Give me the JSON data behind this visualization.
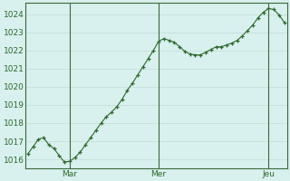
{
  "y_values": [
    1016.3,
    1016.7,
    1017.1,
    1017.2,
    1016.8,
    1016.6,
    1016.2,
    1015.85,
    1015.9,
    1016.1,
    1016.4,
    1016.8,
    1017.2,
    1017.6,
    1018.0,
    1018.35,
    1018.6,
    1018.9,
    1019.3,
    1019.8,
    1020.2,
    1020.65,
    1021.1,
    1021.55,
    1022.0,
    1022.5,
    1022.65,
    1022.55,
    1022.45,
    1022.2,
    1021.95,
    1021.8,
    1021.75,
    1021.75,
    1021.9,
    1022.05,
    1022.2,
    1022.2,
    1022.3,
    1022.4,
    1022.55,
    1022.8,
    1023.1,
    1023.4,
    1023.8,
    1024.1,
    1024.3,
    1024.25,
    1023.95,
    1023.55
  ],
  "n_points": 50,
  "day_tick_indices": [
    0,
    16,
    33
  ],
  "day_labels": [
    "Mar",
    "Mer",
    "Jeu"
  ],
  "ylim": [
    1015.5,
    1024.6
  ],
  "yticks": [
    1016,
    1017,
    1018,
    1019,
    1020,
    1021,
    1022,
    1023,
    1024
  ],
  "line_color": "#2d6a2d",
  "marker": "+",
  "marker_size": 3.5,
  "marker_lw": 0.9,
  "line_width": 0.8,
  "bg_color": "#d8f0ee",
  "grid_color": "#c0d8d0",
  "vline_color": "#3a6b3a",
  "spine_color": "#3a6b3a",
  "label_color": "#2d6a2d",
  "label_fontsize": 6.5
}
